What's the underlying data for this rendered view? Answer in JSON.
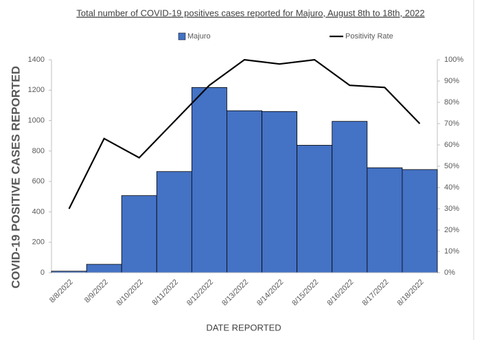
{
  "chart_data": {
    "type": "bar",
    "title": "Total number of COVID-19 positives cases reported for Majuro,  August 8th to 18th, 2022",
    "x_label": "DATE REPORTED",
    "y_label": "COVID-19  POSITIVE CASES REPORTED",
    "categories": [
      "8/8/2022",
      "8/9/2022",
      "8/10/2022",
      "8/11/2022",
      "8/12/2022",
      "8/13/2022",
      "8/14/2022",
      "8/15/2022",
      "8/16/2022",
      "8/17/2022",
      "8/18/2022"
    ],
    "series": [
      {
        "name": "Majuro",
        "color": "#4472c4",
        "values": [
          10,
          55,
          507,
          665,
          1218,
          1065,
          1060,
          838,
          995,
          690,
          678
        ]
      },
      {
        "name": "Positivity Rate",
        "color": "#000000",
        "axis": "y2",
        "values": [
          30,
          63,
          54,
          71,
          88,
          100,
          98,
          100,
          88,
          87,
          70
        ]
      }
    ],
    "ylim": [
      0,
      1400
    ],
    "yticks": [
      0,
      200,
      400,
      600,
      800,
      1000,
      1200,
      1400
    ],
    "y2lim": [
      0,
      100
    ],
    "y2ticks": [
      {
        "value": 0,
        "label": "0%"
      },
      {
        "value": 10,
        "label": "10%"
      },
      {
        "value": 20,
        "label": "20%"
      },
      {
        "value": 30,
        "label": "30%"
      },
      {
        "value": 40,
        "label": "40%"
      },
      {
        "value": 50,
        "label": "50%"
      },
      {
        "value": 60,
        "label": "60%"
      },
      {
        "value": 70,
        "label": "70%"
      },
      {
        "value": 80,
        "label": "80%"
      },
      {
        "value": 90,
        "label": "90%"
      },
      {
        "value": 100,
        "label": "100%"
      }
    ],
    "legend": "top"
  }
}
